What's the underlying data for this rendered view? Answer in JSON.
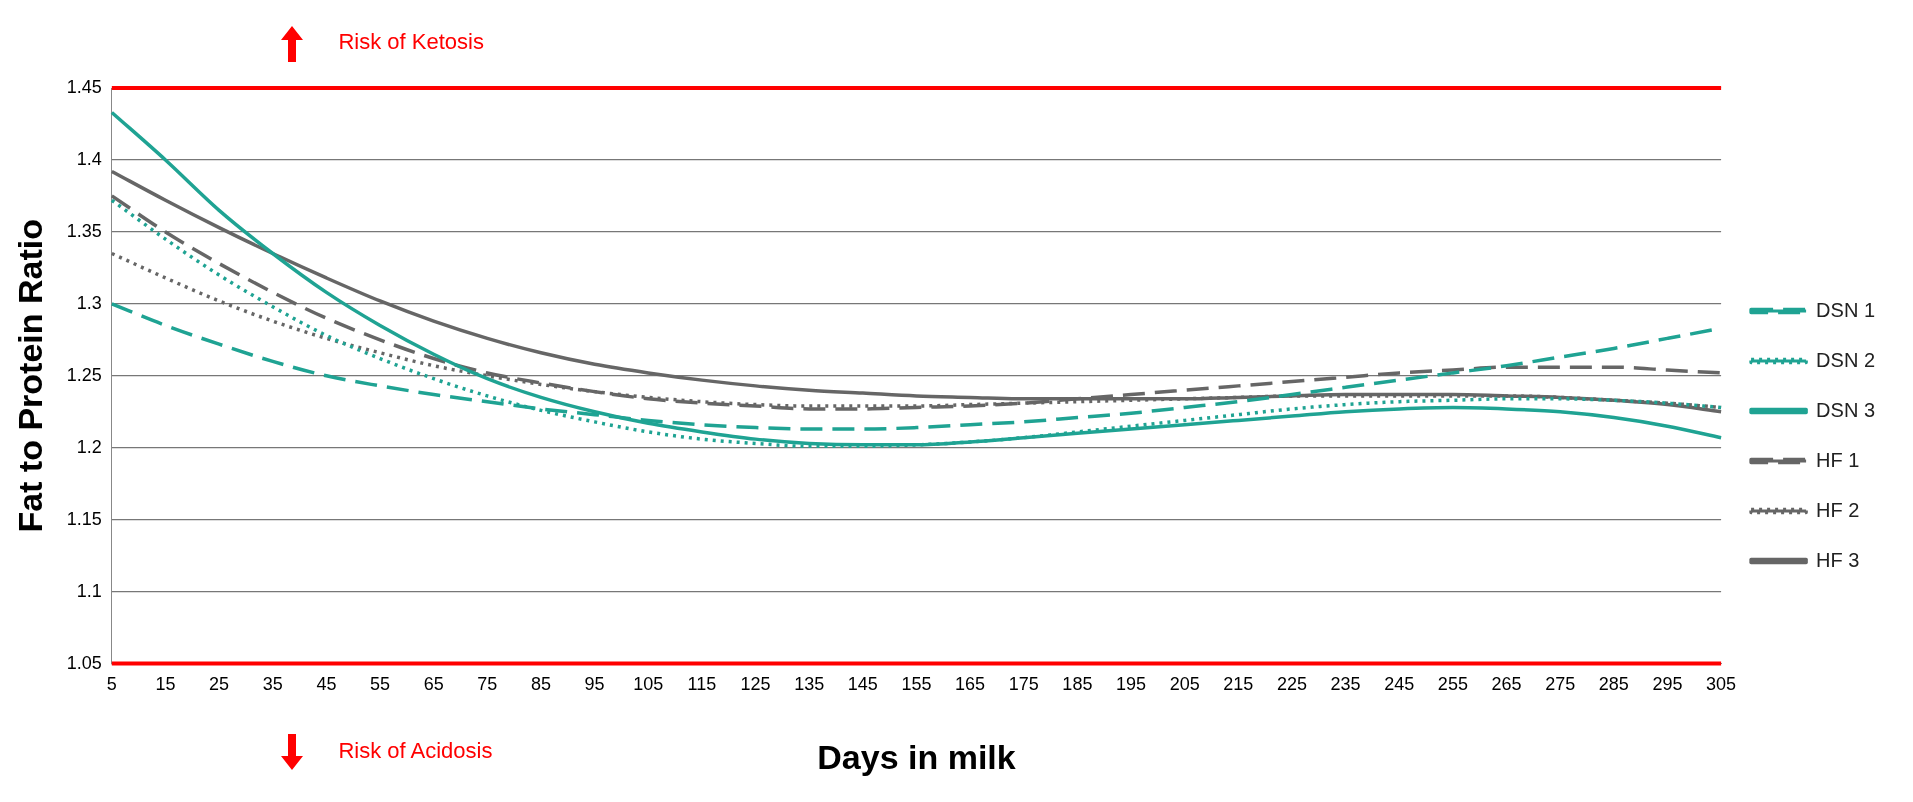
{
  "chart_data": {
    "type": "line",
    "xlabel": "Days in milk",
    "ylabel": "Fat to Protein Ratio",
    "categories": [
      "5",
      "15",
      "25",
      "35",
      "45",
      "55",
      "65",
      "75",
      "85",
      "95",
      "105",
      "115",
      "125",
      "135",
      "145",
      "155",
      "165",
      "175",
      "185",
      "195",
      "205",
      "215",
      "225",
      "235",
      "245",
      "255",
      "265",
      "275",
      "285",
      "295",
      "305"
    ],
    "ylim": [
      1.05,
      1.45
    ],
    "yticks": [
      1.05,
      1.1,
      1.15,
      1.2,
      1.25,
      1.3,
      1.35,
      1.4,
      1.45
    ],
    "grid": "y",
    "legend": "right",
    "ref_lines": [
      {
        "axis": "y",
        "value": 1.45,
        "color": "#ff0000"
      },
      {
        "axis": "y",
        "value": 1.05,
        "color": "#ff0000"
      }
    ],
    "annotations": [
      "Risk of Ketosis",
      "Risk of Acidosis"
    ],
    "series": [
      {
        "name": "DSN 1",
        "color": "#1fa393",
        "line_style": "dashed",
        "values": [
          1.3,
          1.285,
          1.272,
          1.26,
          1.25,
          1.243,
          1.237,
          1.232,
          1.227,
          1.223,
          1.219,
          1.216,
          1.214,
          1.213,
          1.213,
          1.214,
          1.216,
          1.218,
          1.221,
          1.224,
          1.228,
          1.232,
          1.237,
          1.242,
          1.247,
          1.252,
          1.257,
          1.263,
          1.269,
          1.276,
          1.283
        ]
      },
      {
        "name": "DSN 2",
        "color": "#1fa393",
        "line_style": "dotted",
        "values": [
          1.372,
          1.345,
          1.32,
          1.298,
          1.278,
          1.262,
          1.248,
          1.236,
          1.226,
          1.218,
          1.211,
          1.206,
          1.203,
          1.201,
          1.201,
          1.202,
          1.204,
          1.207,
          1.211,
          1.215,
          1.219,
          1.223,
          1.227,
          1.23,
          1.232,
          1.233,
          1.234,
          1.234,
          1.233,
          1.231,
          1.228
        ]
      },
      {
        "name": "DSN 3",
        "color": "#1fa393",
        "line_style": "solid",
        "values": [
          1.433,
          1.4,
          1.365,
          1.335,
          1.308,
          1.285,
          1.265,
          1.248,
          1.235,
          1.225,
          1.217,
          1.211,
          1.206,
          1.203,
          1.202,
          1.202,
          1.204,
          1.207,
          1.21,
          1.213,
          1.216,
          1.219,
          1.222,
          1.225,
          1.227,
          1.228,
          1.227,
          1.225,
          1.221,
          1.215,
          1.207
        ]
      },
      {
        "name": "HF 1",
        "color": "#666666",
        "line_style": "dashed",
        "values": [
          1.375,
          1.35,
          1.328,
          1.308,
          1.29,
          1.275,
          1.262,
          1.252,
          1.245,
          1.239,
          1.234,
          1.231,
          1.229,
          1.227,
          1.227,
          1.228,
          1.229,
          1.231,
          1.234,
          1.237,
          1.24,
          1.243,
          1.246,
          1.249,
          1.252,
          1.254,
          1.256,
          1.256,
          1.256,
          1.254,
          1.252
        ]
      },
      {
        "name": "HF 2",
        "color": "#666666",
        "line_style": "dotted",
        "values": [
          1.335,
          1.318,
          1.302,
          1.288,
          1.276,
          1.266,
          1.257,
          1.25,
          1.244,
          1.239,
          1.235,
          1.232,
          1.23,
          1.229,
          1.229,
          1.229,
          1.23,
          1.231,
          1.232,
          1.233,
          1.234,
          1.235,
          1.236,
          1.236,
          1.236,
          1.236,
          1.236,
          1.235,
          1.233,
          1.231,
          1.228
        ]
      },
      {
        "name": "HF 3",
        "color": "#666666",
        "line_style": "solid",
        "values": [
          1.392,
          1.372,
          1.353,
          1.335,
          1.318,
          1.302,
          1.288,
          1.276,
          1.266,
          1.258,
          1.252,
          1.247,
          1.243,
          1.24,
          1.238,
          1.236,
          1.235,
          1.234,
          1.234,
          1.234,
          1.234,
          1.235,
          1.236,
          1.237,
          1.237,
          1.237,
          1.236,
          1.235,
          1.233,
          1.23,
          1.225
        ]
      }
    ]
  }
}
